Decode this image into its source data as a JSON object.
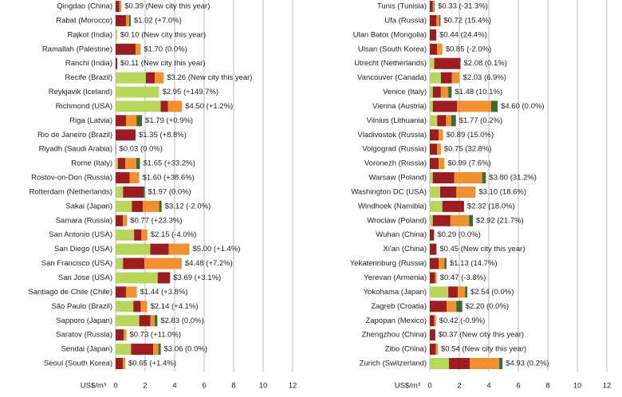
{
  "chart_data": [
    {
      "type": "bar",
      "orientation": "horizontal",
      "stacked": true,
      "xlabel": "US$/m³",
      "xlim": [
        0,
        12
      ],
      "xticks": [
        0,
        2,
        4,
        6,
        8,
        10,
        12
      ],
      "grid": true,
      "categories": [
        "Qingdao (China)",
        "Rabat (Morocco)",
        "Rajkot (India)",
        "Ramallah (Palestine)",
        "Ranchi (India)",
        "Recife (Brazil)",
        "Reykjavik (Iceland)",
        "Richmond (USA)",
        "Riga (Latvia)",
        "Rio de Janeiro (Brazil)",
        "Riyadh (Saudi Arabia)",
        "Rome (Italy)",
        "Rostov-on-Don (Russia)",
        "Rotterdam (Netherlands)",
        "Sakai (Japan)",
        "Samara (Russia)",
        "San Antonio (USA)",
        "San Diego (USA)",
        "San Francisco (USA)",
        "San Jose (USA)",
        "Santiago de Chile (Chile)",
        "São Paulo (Brazil)",
        "Sapporo (Japan)",
        "Saratov (Russia)",
        "Sendai (Japan)",
        "Seoul (South Korea)"
      ],
      "series": [
        {
          "color": "#b9d65c",
          "values": [
            0,
            0,
            0.1,
            0,
            0,
            2.05,
            2.95,
            3.05,
            0,
            0,
            0,
            0.15,
            0,
            0.5,
            1.1,
            0,
            1.25,
            2.35,
            0.5,
            2.85,
            0,
            1.2,
            1.6,
            0,
            1.05,
            0
          ]
        },
        {
          "color": "#9b1d20",
          "values": [
            0.25,
            0.7,
            0,
            1.35,
            0.11,
            0.6,
            0,
            0.5,
            0.7,
            1.35,
            0.03,
            0.5,
            0.95,
            1.4,
            0.75,
            0.5,
            0.5,
            1.25,
            1.45,
            0.84,
            0.7,
            0.5,
            0.75,
            0.55,
            1.5,
            0.5
          ]
        },
        {
          "color": "#f09030",
          "values": [
            0.14,
            0.22,
            0,
            0.35,
            0,
            0.61,
            0,
            0.95,
            0.72,
            0,
            0,
            0.75,
            0.65,
            0,
            1.1,
            0.27,
            0.4,
            1.4,
            2.53,
            0,
            0.74,
            0.44,
            0.3,
            0.18,
            0.35,
            0.15
          ]
        },
        {
          "color": "#3d6b2c",
          "values": [
            0,
            0.1,
            0,
            0,
            0,
            0,
            0,
            0,
            0.37,
            0,
            0,
            0.25,
            0,
            0.07,
            0.17,
            0,
            0,
            0,
            0,
            0,
            0,
            0,
            0.18,
            0,
            0.16,
            0
          ]
        }
      ],
      "totals": [
        0.39,
        1.02,
        0.1,
        1.7,
        0.11,
        3.26,
        2.95,
        4.5,
        1.79,
        1.35,
        0.03,
        1.65,
        1.6,
        1.97,
        3.12,
        0.77,
        2.15,
        5.0,
        4.48,
        3.69,
        1.44,
        2.14,
        2.83,
        0.73,
        3.06,
        0.65
      ],
      "total_labels": [
        "$0.39 (New city this year)",
        "$1.02 (+7.0%)",
        "$0.10 (New city this year)",
        "$1.70 (0.0%)",
        "$0.11 (New city this year)",
        "$3.26 (New city this year)",
        "$2.95 (+149.7%)",
        "$4.50 (+1.2%)",
        "$1.79 (+0.9%)",
        "$1.35 (+8.8%)",
        "$0.03 (0.0%)",
        "$1.65 (+33.2%)",
        "$1.60 (+38.6%)",
        "$1.97 (0.0%)",
        "$3.12 (-2.0%)",
        "$0.77 (+23.3%)",
        "$2.15 (-4.0%)",
        "$5.00 (+1.4%)",
        "$4.48 (+7.2%)",
        "$3.69 (+3.1%)",
        "$1.44 (+3.8%)",
        "$2.14 (+4.1%)",
        "$2.83 (0.0%)",
        "$0.73 (+11.0%)",
        "$3.06 (0.0%)",
        "$0.65 (+1.4%)"
      ]
    },
    {
      "type": "bar",
      "orientation": "horizontal",
      "stacked": true,
      "xlabel": "US$/m³",
      "xlim": [
        0,
        12
      ],
      "xticks": [
        0,
        2,
        4,
        6,
        8,
        10,
        12
      ],
      "grid": true,
      "categories": [
        "Tunis (Tunisia)",
        "Ufa (Russia)",
        "Ulan Bator (Mongolia)",
        "Ulsan (South Korea)",
        "Utrecht (Netherlands)",
        "Vancouver (Canada)",
        "Venice (Italy)",
        "Vienna (Austria)",
        "Vilnius (Lithuania)",
        "Vladivostok (Russia)",
        "Volgograd (Russia)",
        "Voronezh (Russia)",
        "Warsaw (Poland)",
        "Washington DC (USA)",
        "Windhoek (Namibia)",
        "Wroclaw (Poland)",
        "Wuhan (China)",
        "Xi'an (China)",
        "Yekaterinburg (Russia)",
        "Yerevan (Armenia)",
        "Yokohama (Japan)",
        "Zagreb (Croatia)",
        "Zapopan (Mexico)",
        "Zhengzhou (China)",
        "Zibo (China)",
        "Zurich (Switzerland)"
      ],
      "series": [
        {
          "color": "#b9d65c",
          "values": [
            0,
            0,
            0,
            0,
            0.3,
            0.75,
            0.2,
            0.2,
            0.5,
            0,
            0,
            0,
            0.2,
            0.7,
            0.85,
            0.2,
            0,
            0,
            0,
            0,
            1.25,
            0,
            0,
            0,
            0,
            1.3
          ]
        },
        {
          "color": "#9b1d20",
          "values": [
            0.2,
            0.45,
            0.44,
            0.5,
            1.78,
            0.75,
            0.55,
            1.65,
            0.6,
            0.6,
            0.5,
            0.6,
            1.45,
            1.1,
            1.47,
            1.2,
            0.29,
            0.45,
            0.6,
            0.35,
            0.65,
            1.15,
            0.3,
            0.37,
            0.4,
            1.4
          ]
        },
        {
          "color": "#f09030",
          "values": [
            0.1,
            0.2,
            0,
            0.35,
            0,
            0.53,
            0.5,
            2.3,
            0.35,
            0.29,
            0.25,
            0.39,
            1.9,
            1.3,
            0,
            1.27,
            0,
            0,
            0.4,
            0.12,
            0.5,
            0.65,
            0.12,
            0,
            0.14,
            2.0
          ]
        },
        {
          "color": "#3d6b2c",
          "values": [
            0.03,
            0.07,
            0,
            0,
            0,
            0,
            0.23,
            0.45,
            0.32,
            0,
            0,
            0,
            0.25,
            0,
            0,
            0.25,
            0,
            0,
            0.13,
            0,
            0.14,
            0.4,
            0,
            0,
            0,
            0.23
          ]
        }
      ],
      "totals": [
        0.33,
        0.72,
        0.44,
        0.85,
        2.08,
        2.03,
        1.48,
        4.6,
        1.77,
        0.89,
        0.75,
        0.99,
        3.8,
        3.1,
        2.32,
        2.92,
        0.29,
        0.45,
        1.13,
        0.47,
        2.54,
        2.2,
        0.42,
        0.37,
        0.54,
        4.93
      ],
      "total_labels": [
        "$0.33 (-31.3%)",
        "$0.72 (15.4%)",
        "$0.44 (24.4%)",
        "$0.85 (-2.0%)",
        "$2.08 (0.1%)",
        "$2.03 (6.9%)",
        "$1.48 (10.1%)",
        "$4.60 (0.0%)",
        "$1.77 (0.2%)",
        "$0.89 (15.0%)",
        "$0.75 (32.8%)",
        "$0.99 (7.6%)",
        "$3.80 (31.2%)",
        "$3.10 (18.6%)",
        "$2.32 (18.0%)",
        "$2.92 (21.7%)",
        "$0.29 (0.0%)",
        "$0.45 (New city this year)",
        "$1.13 (14.7%)",
        "$0.47 (-3.8%)",
        "$2.54 (0.0%)",
        "$2.20 (0.0%)",
        "$0.42 (-0.9%)",
        "$0.37 (New city this year)",
        "$0.54 (New city this year)",
        "$4.93 (0.2%)"
      ]
    }
  ]
}
